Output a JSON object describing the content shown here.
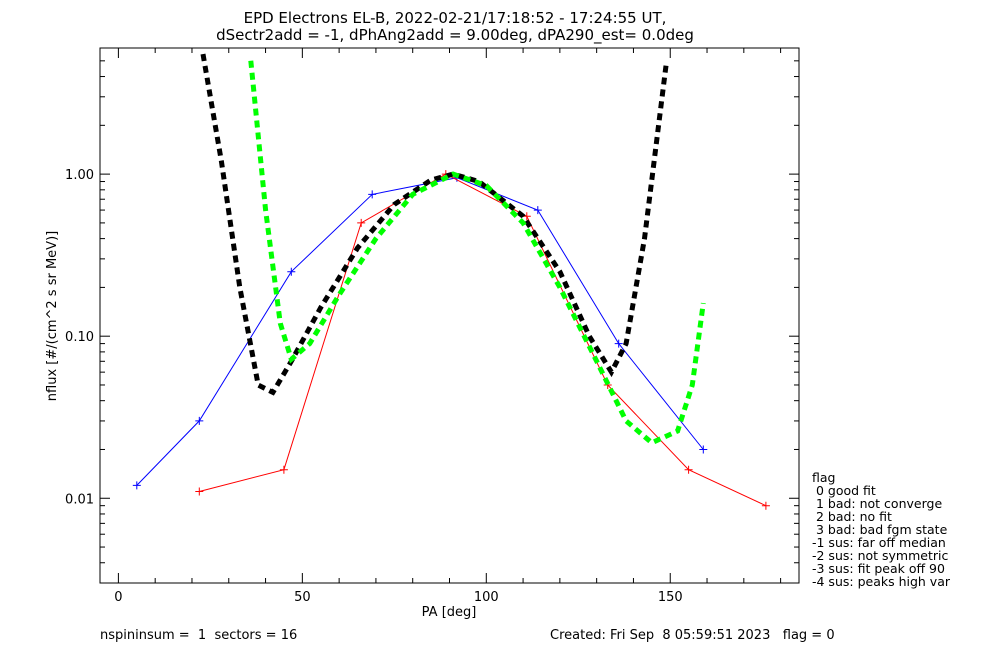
{
  "chart_data": {
    "type": "line",
    "title": "EPD Electrons EL-B, 2022-02-21/17:18:52 - 17:24:55 UT,",
    "subtitle": "dSectr2add = -1, dPhAng2add = 9.00deg, dPA290_est=   0.0deg",
    "xlabel": "PA [deg]",
    "ylabel": "nflux [#/(cm^2 s sr MeV)]",
    "xlim": [
      -5,
      185
    ],
    "ylim": [
      0.003,
      6
    ],
    "yscale": "log",
    "xticks": [
      0,
      50,
      100,
      150
    ],
    "yticks": [
      {
        "value": 0.01,
        "label": "0.01"
      },
      {
        "value": 0.1,
        "label": "0.10"
      },
      {
        "value": 1.0,
        "label": "1.00"
      }
    ],
    "colors": {
      "blue": "#0000ff",
      "red": "#ff0000",
      "black": "#000000",
      "green": "#00ff00"
    },
    "series": [
      {
        "color": "#0000ff",
        "style": "thin line with + markers",
        "x": [
          5,
          22,
          47,
          69,
          92,
          114,
          136,
          159
        ],
        "y": [
          0.012,
          0.03,
          0.25,
          0.75,
          0.95,
          0.6,
          0.09,
          0.02
        ]
      },
      {
        "color": "#ff0000",
        "style": "thin line with + markers",
        "x": [
          22,
          45,
          66,
          89,
          111,
          133,
          155,
          176
        ],
        "y": [
          0.011,
          0.015,
          0.5,
          1.0,
          0.55,
          0.05,
          0.015,
          0.009
        ]
      },
      {
        "color": "#000000",
        "style": "thick dashed fit curve",
        "x": [
          23,
          28,
          33,
          38,
          42,
          47,
          55,
          65,
          75,
          85,
          91,
          98,
          110,
          120,
          128,
          134,
          138,
          143,
          149
        ],
        "y": [
          5.5,
          1.2,
          0.2,
          0.05,
          0.045,
          0.07,
          0.15,
          0.35,
          0.65,
          0.92,
          1.0,
          0.9,
          0.55,
          0.25,
          0.1,
          0.06,
          0.09,
          0.4,
          5.0
        ]
      },
      {
        "color": "#00ff00",
        "style": "thick dashed fit curve",
        "x": [
          36,
          40,
          44,
          47,
          52,
          60,
          70,
          80,
          91,
          100,
          110,
          120,
          130,
          138,
          145,
          152,
          156,
          159
        ],
        "y": [
          5.0,
          0.6,
          0.12,
          0.072,
          0.09,
          0.18,
          0.4,
          0.75,
          1.0,
          0.85,
          0.5,
          0.2,
          0.07,
          0.03,
          0.022,
          0.026,
          0.05,
          0.16
        ]
      }
    ],
    "legend_placement": "right, below plot area top",
    "legend_title": "flag",
    "legend": [
      " 0 good fit",
      " 1 bad: not converge",
      " 2 bad: no fit",
      " 3 bad: bad fgm state",
      "-1 sus: far off median",
      "-2 sus: not symmetric",
      "-3 sus: fit peak off 90",
      "-4 sus: peaks high var"
    ],
    "footer_left": "nspininsum =  1  sectors = 16",
    "footer_right": "Created: Fri Sep  8 05:59:51 2023   flag = 0"
  }
}
